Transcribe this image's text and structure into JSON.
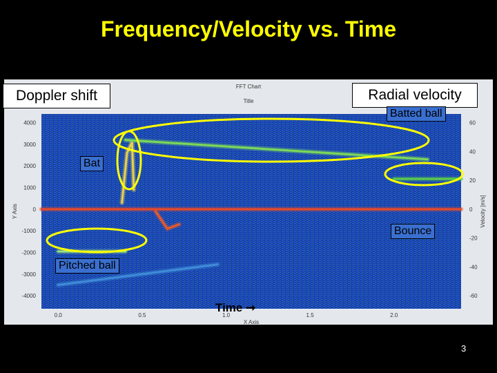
{
  "slide": {
    "title": "Frequency/Velocity vs. Time",
    "page_number": "3"
  },
  "annotations": {
    "doppler_shift": "Doppler shift",
    "radial_velocity": "Radial velocity",
    "batted_ball": "Batted ball",
    "bat": "Bat",
    "bounce": "Bounce",
    "pitched_ball": "Pitched ball",
    "time": "Time"
  },
  "chart_data": {
    "type": "heatmap",
    "title": "FFT Chart",
    "subtitle": "Title",
    "xlabel": "X Axis",
    "ylabel": "Y Axis",
    "y2label": "Velocity [m/s]",
    "x_ticks": [
      "0.0",
      "0.5",
      "1.0",
      "1.5",
      "2.0"
    ],
    "x_tick_values": [
      0.0,
      0.5,
      1.0,
      1.5,
      2.0
    ],
    "xlim": [
      -0.1,
      2.4
    ],
    "y_ticks": [
      "4000",
      "3000",
      "2000",
      "1000",
      "0",
      "-1000",
      "-2000",
      "-3000",
      "-4000"
    ],
    "y_tick_values": [
      4000,
      3000,
      2000,
      1000,
      0,
      -1000,
      -2000,
      -3000,
      -4000
    ],
    "ylim": [
      -4600,
      4400
    ],
    "y2_ticks": [
      "60",
      "40",
      "20",
      "0",
      "-20",
      "-40",
      "-60"
    ],
    "y2_tick_values": [
      60,
      40,
      20,
      0,
      -20,
      -40,
      -60
    ],
    "y2lim": [
      -69,
      66
    ],
    "background_color": "#1a3fae",
    "series": [
      {
        "name": "Batted ball",
        "x": [
          0.4,
          2.2
        ],
        "y": [
          3200,
          2300
        ],
        "color": "#7cd85a"
      },
      {
        "name": "Batted ball",
        "x": [
          2.0,
          2.4
        ],
        "y": [
          1400,
          1400
        ],
        "color": "#5ccc4a"
      },
      {
        "name": "Bat",
        "x": [
          0.38,
          0.41,
          0.44,
          0.45
        ],
        "y": [
          300,
          2600,
          3100,
          900
        ],
        "color": "#e8d04a"
      },
      {
        "name": "Pitched ball",
        "x": [
          0.0,
          0.4
        ],
        "y": [
          -1950,
          -1950
        ],
        "color": "#9be07a"
      },
      {
        "name": "Pitched ball",
        "x": [
          0.0,
          0.95
        ],
        "y": [
          -3500,
          -2550
        ],
        "color": "#3f8bd8"
      },
      {
        "name": "Bounce",
        "x": [
          0.58,
          0.65,
          0.72
        ],
        "y": [
          -100,
          -900,
          -700
        ],
        "color": "#e85a2a"
      },
      {
        "name": "",
        "x": [
          -0.1,
          2.4
        ],
        "y": [
          0,
          0
        ],
        "color": "#e84a2a"
      }
    ]
  }
}
